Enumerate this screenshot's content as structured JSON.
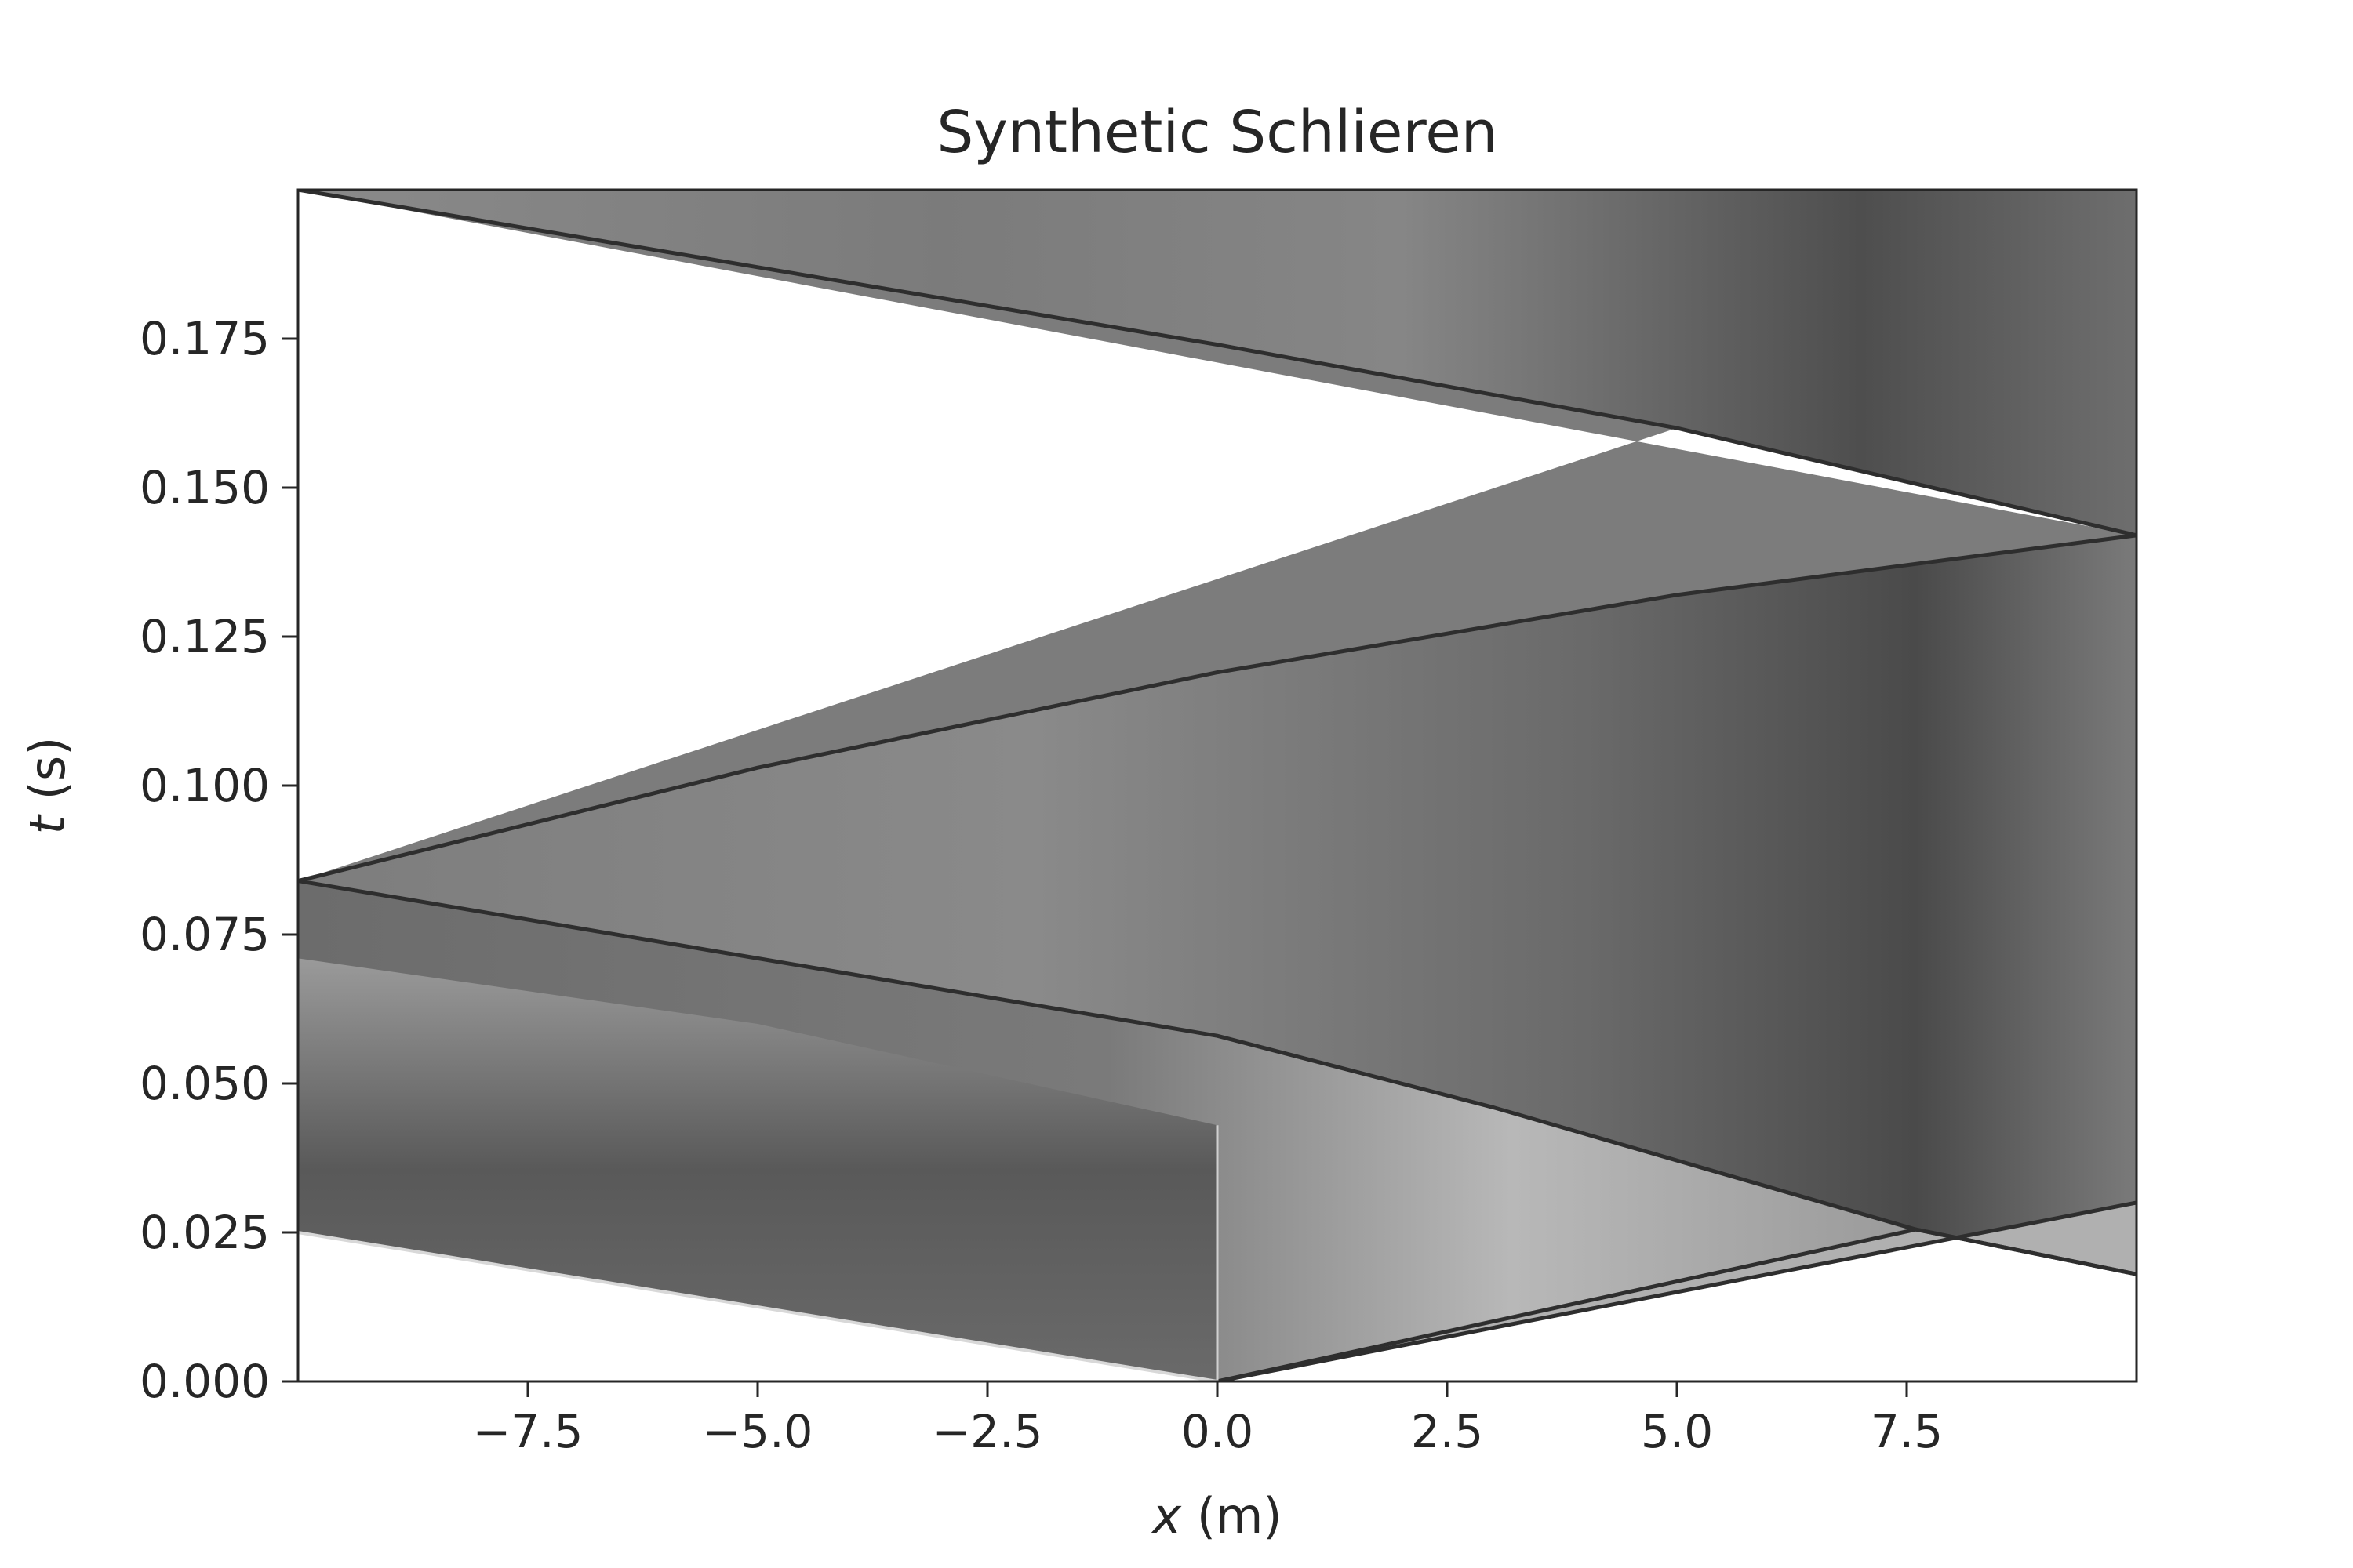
{
  "chart_data": {
    "type": "heatmap",
    "title": "Synthetic Schlieren",
    "xlabel": {
      "var": "x",
      "unit": " (m)"
    },
    "ylabel": {
      "var": "t",
      "unit": " (s)"
    },
    "xlim": [
      -10.0,
      10.0
    ],
    "ylim": [
      0.0,
      0.2
    ],
    "xticks": [
      -7.5,
      -5.0,
      -2.5,
      0.0,
      2.5,
      5.0,
      7.5
    ],
    "xtick_labels": [
      "−7.5",
      "−5.0",
      "−2.5",
      "0.0",
      "2.5",
      "5.0",
      "7.5"
    ],
    "yticks": [
      0.0,
      0.025,
      0.05,
      0.075,
      0.1,
      0.125,
      0.15,
      0.175
    ],
    "ytick_labels": [
      "0.000",
      "0.025",
      "0.050",
      "0.075",
      "0.100",
      "0.125",
      "0.150",
      "0.175"
    ],
    "colormap": "grayscale (dark = strong density gradient, white = undisturbed)",
    "grid": false,
    "shock_paths": [
      {
        "name": "shock-right-initial",
        "points": [
          [
            0.0,
            0.0
          ],
          [
            7.6,
            0.0255
          ],
          [
            10.0,
            0.018
          ]
        ]
      },
      {
        "name": "contact-right",
        "points": [
          [
            0.0,
            0.0
          ],
          [
            10.0,
            0.03
          ]
        ]
      },
      {
        "name": "shock-reflected-left",
        "points": [
          [
            10.0,
            0.018
          ],
          [
            7.6,
            0.0255
          ],
          [
            3.0,
            0.046
          ],
          [
            0.0,
            0.058
          ],
          [
            -5.0,
            0.071
          ],
          [
            -10.0,
            0.084
          ]
        ]
      },
      {
        "name": "shock-reflected-right",
        "points": [
          [
            -10.0,
            0.084
          ],
          [
            -5.0,
            0.103
          ],
          [
            0.0,
            0.119
          ],
          [
            5.0,
            0.132
          ],
          [
            10.0,
            0.142
          ]
        ]
      },
      {
        "name": "shock-final-left",
        "points": [
          [
            10.0,
            0.142
          ],
          [
            5.0,
            0.16
          ],
          [
            0.0,
            0.174
          ],
          [
            -5.0,
            0.187
          ],
          [
            -10.0,
            0.2
          ]
        ]
      }
    ],
    "expansion_fan": {
      "origin": [
        0.0,
        0.0
      ],
      "left_edge": [
        -10.0,
        0.025
      ],
      "right_edge": [
        0.0,
        0.043
      ]
    }
  }
}
